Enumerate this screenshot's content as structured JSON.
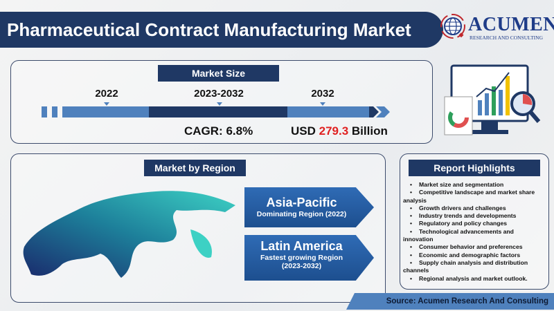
{
  "title": "Pharmaceutical Contract Manufacturing Market",
  "logo": {
    "name": "ACUMEN",
    "subtitle": "RESEARCH AND CONSULTING"
  },
  "market_size": {
    "label": "Market Size",
    "years": [
      "2022",
      "2023-2032",
      "2032"
    ],
    "cagr": "CAGR: 6.8%",
    "value_prefix": "USD ",
    "value": "279.3",
    "value_suffix": " Billion",
    "value_color": "#e02020"
  },
  "region": {
    "label": "Market by Region",
    "dominating": {
      "name": "Asia-Pacific",
      "sub": "Dominating Region (2022)"
    },
    "fastest": {
      "name": "Latin America",
      "sub": "Fastest growing Region",
      "period": "(2023-2032)"
    }
  },
  "highlights": {
    "label": "Report Highlights",
    "items": [
      "Market size and segmentation",
      "Competitive landscape and market share analysis",
      "Growth drivers and challenges",
      "Industry trends and developments",
      "Regulatory and policy changes",
      "Technological advancements and innovation",
      "Consumer behavior and preferences",
      "Economic and demographic factors",
      "Supply chain analysis and distribution channels",
      "Regional analysis and market outlook."
    ]
  },
  "source": "Source: Acumen Research And Consulting",
  "colors": {
    "navy": "#1f3864",
    "blue": "#4f81bd",
    "accent_red": "#e02020"
  }
}
